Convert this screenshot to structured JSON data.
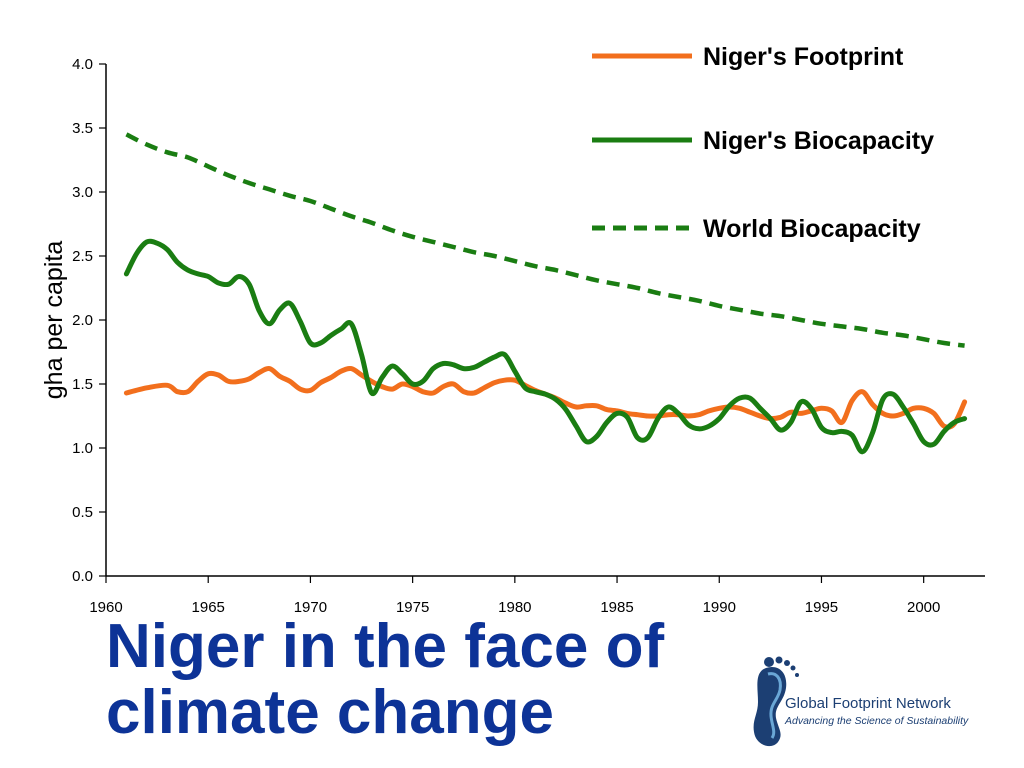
{
  "chart_data": {
    "type": "line",
    "title": "",
    "xlabel": "",
    "ylabel": "gha per capita",
    "xlim": [
      1960,
      2003
    ],
    "ylim": [
      0,
      4
    ],
    "xticks": [
      "1960",
      "1965",
      "1970",
      "1975",
      "1980",
      "1985",
      "1990",
      "1995",
      "2000"
    ],
    "yticks": [
      "0.0",
      "0.5",
      "1.0",
      "1.5",
      "2.0",
      "2.5",
      "3.0",
      "3.5",
      "4.0"
    ],
    "grid": false,
    "legend_position": "top-right",
    "series": [
      {
        "name": "Niger's Footprint",
        "color": "#f26f1d",
        "style": "solid",
        "x": [
          1961,
          1962,
          1963,
          1963.5,
          1964,
          1964.5,
          1965,
          1965.5,
          1966,
          1966.5,
          1967,
          1967.5,
          1968,
          1968.5,
          1969,
          1969.5,
          1970,
          1970.5,
          1971,
          1971.5,
          1972,
          1972.5,
          1973,
          1973.5,
          1974,
          1974.5,
          1975,
          1975.5,
          1976,
          1976.5,
          1977,
          1977.5,
          1978,
          1978.5,
          1979,
          1979.5,
          1980,
          1980.5,
          1981,
          1981.5,
          1982,
          1982.5,
          1983,
          1983.5,
          1984,
          1984.5,
          1985,
          1985.5,
          1986,
          1986.5,
          1987,
          1987.5,
          1988,
          1988.5,
          1989,
          1989.5,
          1990,
          1990.5,
          1991,
          1991.5,
          1992,
          1992.5,
          1993,
          1993.5,
          1994,
          1994.5,
          1995,
          1995.5,
          1996,
          1996.5,
          1997,
          1997.5,
          1998,
          1998.5,
          1999,
          1999.5,
          2000,
          2000.5,
          2001,
          2001.5,
          2002
        ],
        "y": [
          1.43,
          1.47,
          1.49,
          1.44,
          1.44,
          1.52,
          1.58,
          1.57,
          1.52,
          1.52,
          1.54,
          1.59,
          1.62,
          1.56,
          1.52,
          1.46,
          1.45,
          1.51,
          1.55,
          1.6,
          1.62,
          1.57,
          1.52,
          1.48,
          1.46,
          1.5,
          1.48,
          1.44,
          1.43,
          1.48,
          1.5,
          1.44,
          1.43,
          1.47,
          1.51,
          1.53,
          1.53,
          1.49,
          1.45,
          1.42,
          1.39,
          1.35,
          1.32,
          1.33,
          1.33,
          1.3,
          1.29,
          1.27,
          1.26,
          1.25,
          1.25,
          1.26,
          1.26,
          1.25,
          1.26,
          1.29,
          1.31,
          1.32,
          1.31,
          1.28,
          1.25,
          1.23,
          1.24,
          1.28,
          1.27,
          1.29,
          1.31,
          1.29,
          1.2,
          1.37,
          1.44,
          1.34,
          1.27,
          1.25,
          1.27,
          1.31,
          1.31,
          1.27,
          1.17,
          1.19,
          1.36
        ]
      },
      {
        "name": "Niger's Biocapacity",
        "color": "#1a7d12",
        "style": "solid",
        "x": [
          1961,
          1961.5,
          1962,
          1962.5,
          1963,
          1963.5,
          1964,
          1964.5,
          1965,
          1965.5,
          1966,
          1966.5,
          1967,
          1967.5,
          1968,
          1968.5,
          1969,
          1969.5,
          1970,
          1970.5,
          1971,
          1971.5,
          1972,
          1972.5,
          1973,
          1973.5,
          1974,
          1974.5,
          1975,
          1975.5,
          1976,
          1976.5,
          1977,
          1977.5,
          1978,
          1978.5,
          1979,
          1979.5,
          1980,
          1980.5,
          1981,
          1981.5,
          1982,
          1982.5,
          1983,
          1983.5,
          1984,
          1984.5,
          1985,
          1985.5,
          1986,
          1986.5,
          1987,
          1987.5,
          1988,
          1988.5,
          1989,
          1989.5,
          1990,
          1990.5,
          1991,
          1991.5,
          1992,
          1992.5,
          1993,
          1993.5,
          1994,
          1994.5,
          1995,
          1995.5,
          1996,
          1996.5,
          1997,
          1997.5,
          1998,
          1998.5,
          1999,
          1999.5,
          2000,
          2000.5,
          2001,
          2001.5,
          2002
        ],
        "y": [
          2.36,
          2.52,
          2.61,
          2.6,
          2.55,
          2.45,
          2.39,
          2.36,
          2.34,
          2.29,
          2.28,
          2.34,
          2.28,
          2.07,
          1.97,
          2.08,
          2.13,
          1.99,
          1.82,
          1.82,
          1.88,
          1.93,
          1.97,
          1.73,
          1.43,
          1.55,
          1.64,
          1.58,
          1.5,
          1.52,
          1.62,
          1.66,
          1.65,
          1.62,
          1.63,
          1.67,
          1.71,
          1.73,
          1.6,
          1.47,
          1.44,
          1.42,
          1.38,
          1.3,
          1.17,
          1.05,
          1.09,
          1.2,
          1.27,
          1.24,
          1.08,
          1.08,
          1.23,
          1.32,
          1.27,
          1.18,
          1.15,
          1.17,
          1.23,
          1.33,
          1.39,
          1.39,
          1.31,
          1.23,
          1.14,
          1.2,
          1.36,
          1.31,
          1.16,
          1.12,
          1.13,
          1.1,
          0.97,
          1.12,
          1.38,
          1.42,
          1.32,
          1.19,
          1.05,
          1.03,
          1.13,
          1.2,
          1.23
        ]
      },
      {
        "name": "World Biocapacity",
        "color": "#1a7d12",
        "style": "dashed",
        "x": [
          1961,
          1962,
          1963,
          1964,
          1965,
          1966,
          1967,
          1968,
          1969,
          1970,
          1971,
          1972,
          1973,
          1974,
          1975,
          1976,
          1977,
          1978,
          1979,
          1980,
          1981,
          1982,
          1983,
          1984,
          1985,
          1986,
          1987,
          1988,
          1989,
          1990,
          1991,
          1992,
          1993,
          1994,
          1995,
          1996,
          1997,
          1998,
          1999,
          2000,
          2001,
          2002
        ],
        "y": [
          3.45,
          3.37,
          3.31,
          3.27,
          3.2,
          3.13,
          3.07,
          3.02,
          2.97,
          2.93,
          2.87,
          2.81,
          2.76,
          2.7,
          2.65,
          2.61,
          2.57,
          2.53,
          2.5,
          2.46,
          2.42,
          2.39,
          2.35,
          2.31,
          2.28,
          2.25,
          2.21,
          2.18,
          2.15,
          2.11,
          2.08,
          2.05,
          2.03,
          2.0,
          1.97,
          1.95,
          1.93,
          1.9,
          1.88,
          1.85,
          1.82,
          1.8
        ]
      }
    ]
  },
  "slide": {
    "title_line1": "Niger in the face of",
    "title_line2": "climate change",
    "title_color": "#0d3397"
  },
  "logo": {
    "name": "Global Footprint Network",
    "tagline": "Advancing the Science of Sustainability",
    "icon": "footprint-icon",
    "color": "#1c3f73"
  }
}
